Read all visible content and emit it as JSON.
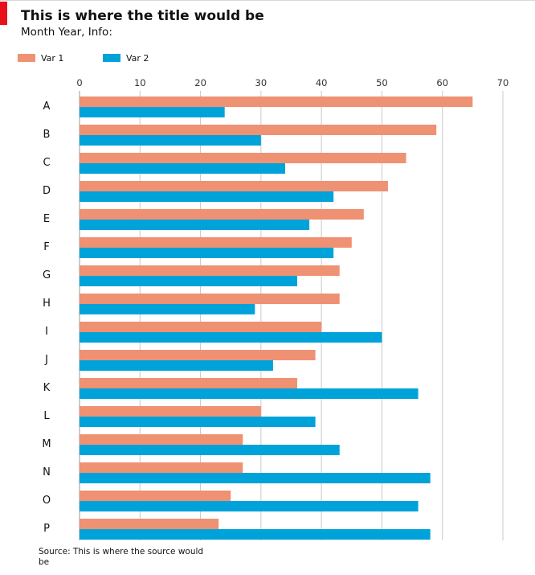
{
  "header": {
    "title": "This is where the title would be",
    "subtitle": "Month Year, Info:"
  },
  "legend": [
    {
      "name": "Var 1",
      "color": "#ef9173"
    },
    {
      "name": "Var 2",
      "color": "#00a3d9"
    }
  ],
  "source": "Source: This is where the source would be",
  "chart_data": {
    "type": "bar",
    "orientation": "horizontal",
    "title": "This is where the title would be",
    "subtitle": "Month Year, Info:",
    "xlabel": "",
    "ylabel": "",
    "xlim": [
      0,
      70
    ],
    "xticks": [
      0,
      10,
      20,
      30,
      40,
      50,
      60,
      70
    ],
    "x_axis_position": "top",
    "grid": true,
    "legend_position": "top-left",
    "categories": [
      "A",
      "B",
      "C",
      "D",
      "E",
      "F",
      "G",
      "H",
      "I",
      "J",
      "K",
      "L",
      "M",
      "N",
      "O",
      "P"
    ],
    "series": [
      {
        "name": "Var 1",
        "color": "#ef9173",
        "values": [
          65,
          59,
          54,
          51,
          47,
          45,
          43,
          43,
          40,
          39,
          36,
          30,
          27,
          27,
          25,
          23
        ]
      },
      {
        "name": "Var 2",
        "color": "#00a3d9",
        "values": [
          24,
          30,
          34,
          42,
          38,
          42,
          36,
          29,
          50,
          32,
          56,
          39,
          43,
          58,
          56,
          58
        ]
      }
    ]
  }
}
